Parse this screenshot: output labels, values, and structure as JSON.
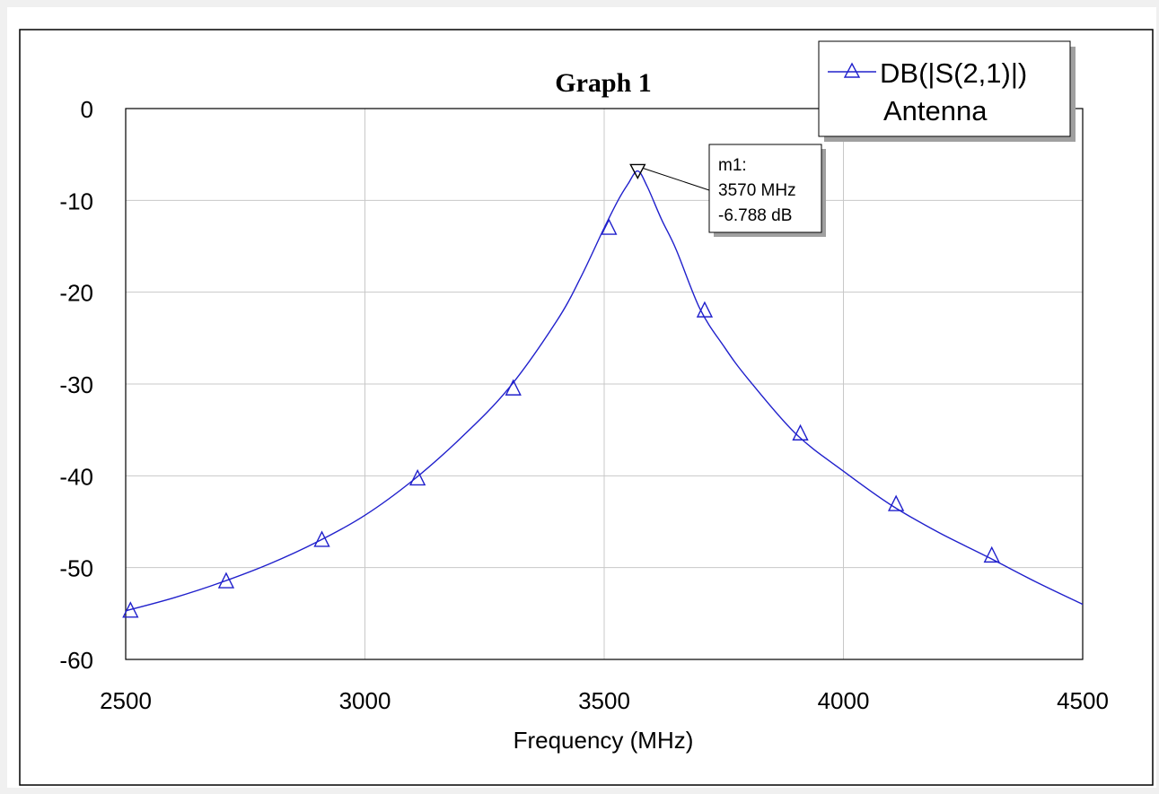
{
  "window": {
    "title": "Graph 1"
  },
  "legend": {
    "series_label": "DB(|S(2,1)|)",
    "source_label": "Antenna",
    "marker_icon": "triangle-icon"
  },
  "marker": {
    "name": "m1:",
    "freq_text": "3570 MHz",
    "value_text": "-6.788 dB",
    "x": 3570,
    "y": -6.788
  },
  "colors": {
    "trace": "#2020cc",
    "grid": "#c8c8c8",
    "frame": "#000000",
    "background": "#ffffff"
  },
  "chart_data": {
    "type": "line",
    "title": "Graph 1",
    "xlabel": "Frequency (MHz)",
    "ylabel": "",
    "xlim": [
      2500,
      4500
    ],
    "ylim": [
      -60,
      0
    ],
    "x_ticks": [
      2500,
      3000,
      3500,
      4000,
      4500
    ],
    "y_ticks": [
      0,
      -10,
      -20,
      -30,
      -40,
      -50,
      -60
    ],
    "grid": true,
    "legend_position": "top-right",
    "series": [
      {
        "name": "DB(|S(2,1)|)",
        "color": "#2020cc",
        "marker": "triangle",
        "x": [
          2500,
          2600,
          2700,
          2800,
          2900,
          3000,
          3100,
          3200,
          3300,
          3400,
          3450,
          3500,
          3530,
          3550,
          3570,
          3590,
          3620,
          3650,
          3700,
          3750,
          3800,
          3900,
          4000,
          4100,
          4200,
          4300,
          4400,
          4500
        ],
        "y": [
          -54.7,
          -53.3,
          -51.6,
          -49.6,
          -47.2,
          -44.3,
          -40.5,
          -35.9,
          -30.5,
          -23.2,
          -18.5,
          -13.0,
          -9.9,
          -8.2,
          -6.8,
          -8.5,
          -12.1,
          -15.3,
          -21.8,
          -25.9,
          -29.4,
          -35.4,
          -39.5,
          -43.2,
          -46.2,
          -48.8,
          -51.5,
          -54.0
        ],
        "marker_x": [
          2510,
          2710,
          2910,
          3110,
          3310,
          3510,
          3710,
          3910,
          4110,
          4310
        ],
        "marker_y": [
          -54.7,
          -51.5,
          -47.0,
          -40.3,
          -30.5,
          -13.0,
          -22.0,
          -35.4,
          -43.1,
          -48.7
        ]
      }
    ]
  }
}
